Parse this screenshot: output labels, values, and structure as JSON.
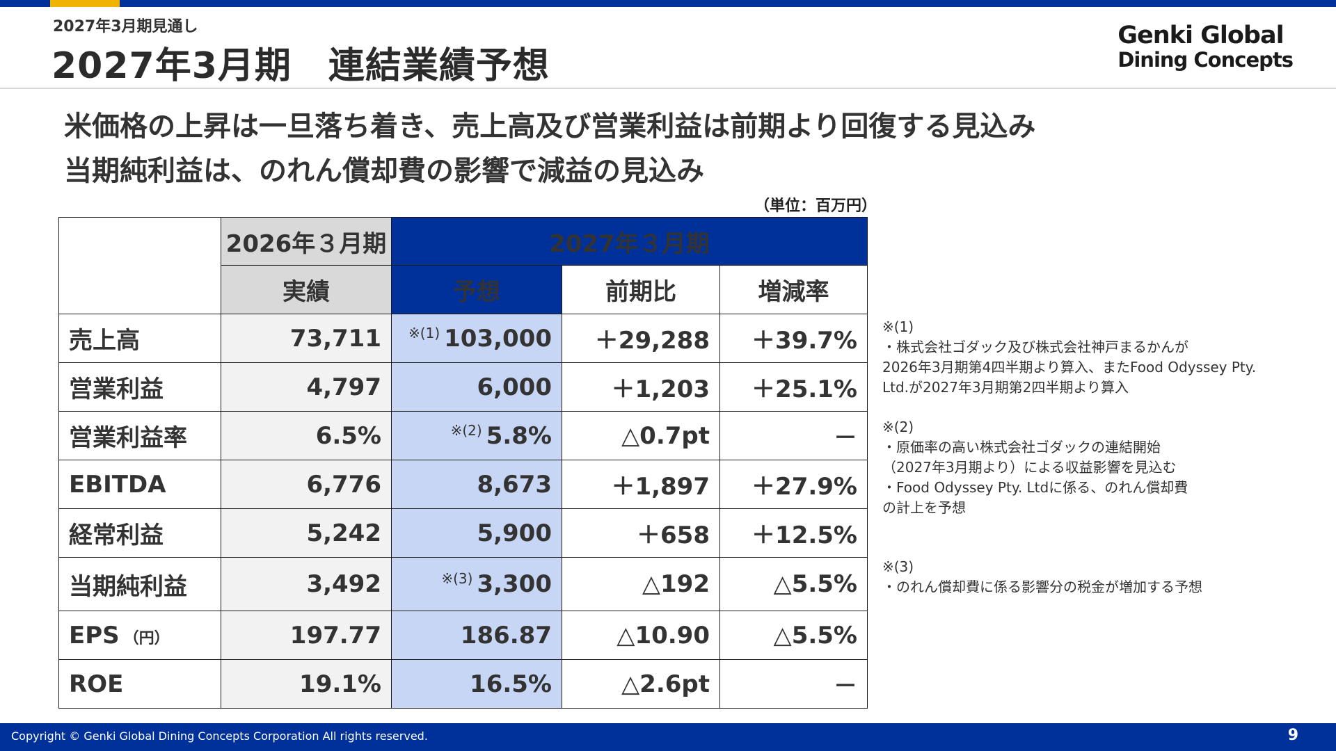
{
  "header": {
    "subtitle": "2027年3月期見通し",
    "title": "2027年3月期　連結業績予想",
    "logo_line1": "Genki Global",
    "logo_line2": "Dining Concepts"
  },
  "headline": {
    "line1": "米価格の上昇は一旦落ち着き、売上高及び営業利益は前期より回復する見込み",
    "line2": "当期純利益は、のれん償却費の影響で減益の見込み"
  },
  "unit_label": "（単位：百万円）",
  "table": {
    "header_2026": "2026年３月期",
    "header_2027": "2027年３月期",
    "col_actual": "実績",
    "col_forecast": "予想",
    "col_yoy": "前期比",
    "col_rate": "増減率",
    "rows": [
      {
        "label": "売上高",
        "unit": "",
        "actual": "73,711",
        "note": "※(1)",
        "forecast": "103,000",
        "yoy": "＋29,288",
        "rate": "＋39.7%"
      },
      {
        "label": "営業利益",
        "unit": "",
        "actual": "4,797",
        "note": "",
        "forecast": "6,000",
        "yoy": "＋1,203",
        "rate": "＋25.1%"
      },
      {
        "label": "営業利益率",
        "unit": "",
        "actual": "6.5%",
        "note": "※(2)",
        "forecast": "5.8%",
        "yoy": "△0.7pt",
        "rate": "－"
      },
      {
        "label": "EBITDA",
        "unit": "",
        "actual": "6,776",
        "note": "",
        "forecast": "8,673",
        "yoy": "＋1,897",
        "rate": "＋27.9%"
      },
      {
        "label": "経常利益",
        "unit": "",
        "actual": "5,242",
        "note": "",
        "forecast": "5,900",
        "yoy": "＋658",
        "rate": "＋12.5%"
      },
      {
        "label": "当期純利益",
        "unit": "",
        "actual": "3,492",
        "note": "※(3)",
        "forecast": "3,300",
        "yoy": "△192",
        "rate": "△5.5%"
      },
      {
        "label": "EPS",
        "unit": "（円）",
        "actual": "197.77",
        "note": "",
        "forecast": "186.87",
        "yoy": "△10.90",
        "rate": "△5.5%"
      },
      {
        "label": "ROE",
        "unit": "",
        "actual": "19.1%",
        "note": "",
        "forecast": "16.5%",
        "yoy": "△2.6pt",
        "rate": "－"
      }
    ]
  },
  "notes": {
    "n1_title": "※(1)",
    "n1_line1": "・株式会社ゴダック及び株式会社神戸まるかんが",
    "n1_line2": "2026年3月期第4四半期より算入、またFood Odyssey Pty.",
    "n1_line3": "Ltd.が2027年3月期第2四半期より算入",
    "n2_title": "※(2)",
    "n2_line1": "・原価率の高い株式会社ゴダックの連結開始",
    "n2_line2": "（2027年3月期より）による収益影響を見込む",
    "n2_line3": "・Food Odyssey Pty. Ltdに係る、のれん償却費",
    "n2_line4": "の計上を予想",
    "n3_title": "※(3)",
    "n3_line1": "・のれん償却費に係る影響分の税金が増加する予想"
  },
  "footer": {
    "copyright": "Copyright © Genki Global Dining Concepts Corporation All rights reserved.",
    "page": "9"
  },
  "colors": {
    "brand_blue": "#00309a",
    "accent_yellow": "#f0b400",
    "forecast_fill": "#c7d6f5",
    "header_gray": "#d9d9d9"
  }
}
